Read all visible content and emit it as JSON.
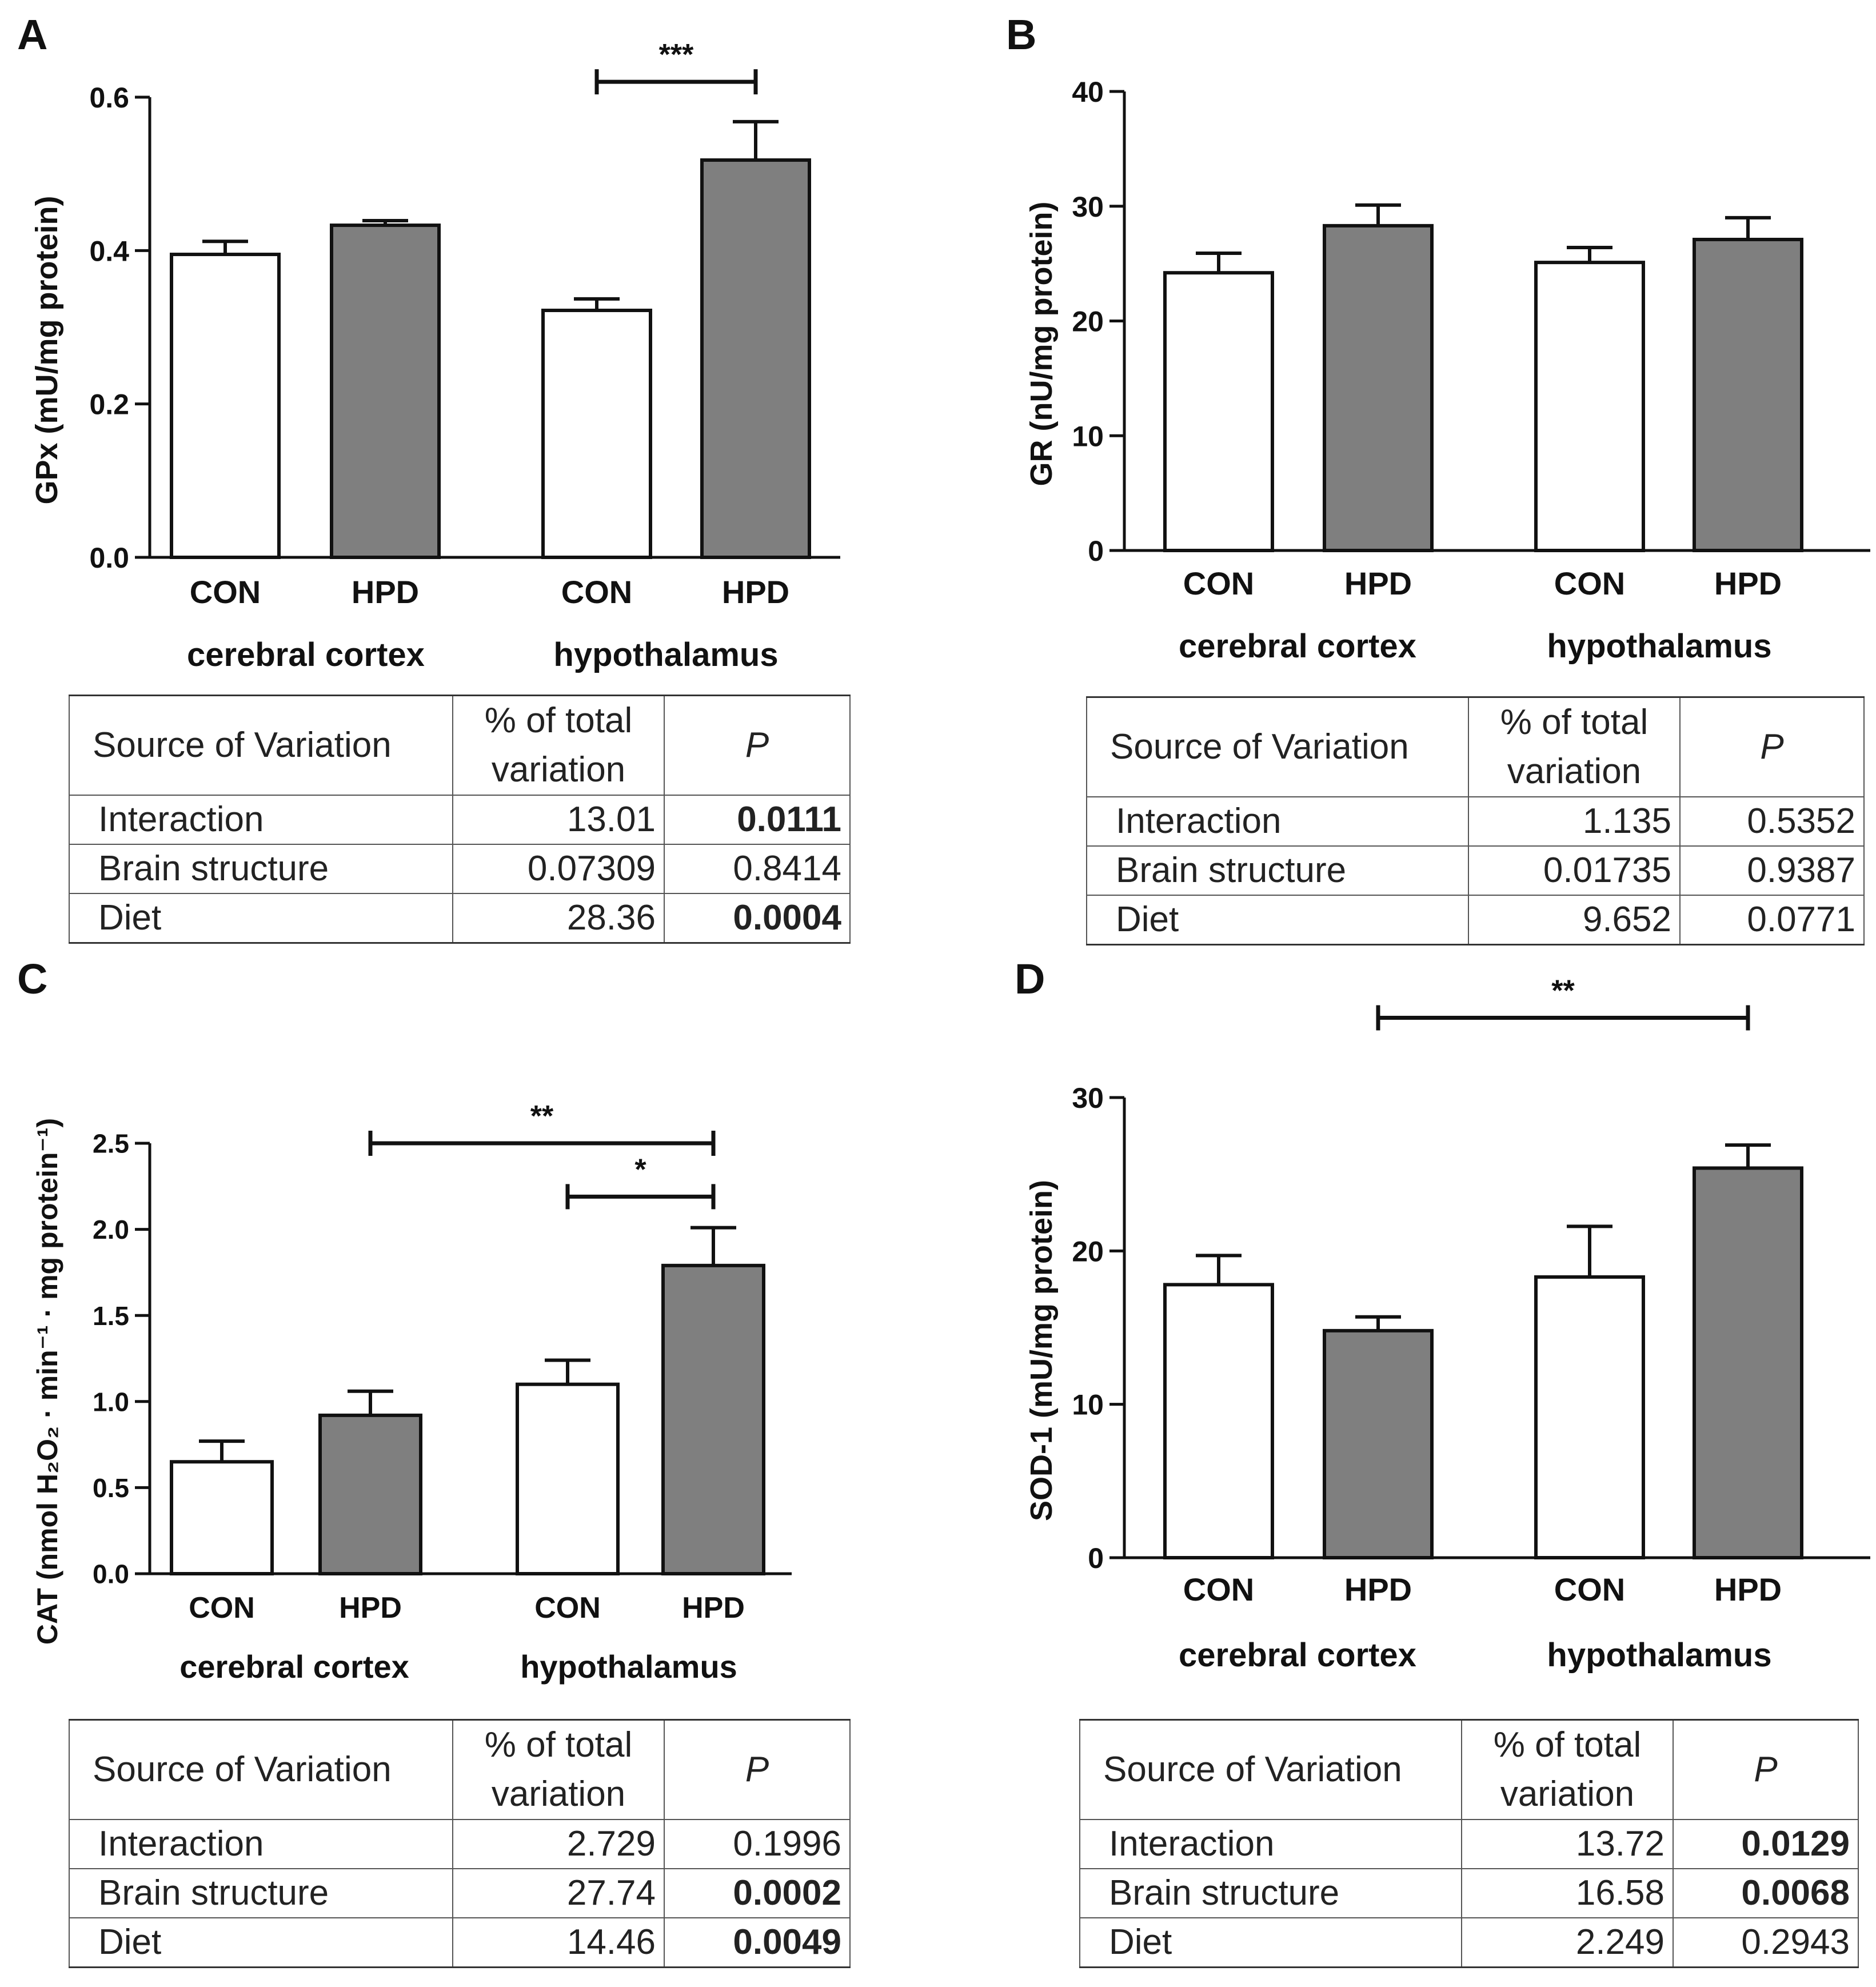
{
  "chart_data": [
    {
      "panel": "A",
      "type": "bar",
      "ylabel": "GPx (mU/mg protein)",
      "ylim": [
        0,
        0.6
      ],
      "yticks": [
        "0.0",
        "0.2",
        "0.4",
        "0.6"
      ],
      "ytick_values": [
        0,
        0.2,
        0.4,
        0.6
      ],
      "groups": [
        "cerebral cortex",
        "hypothalamus"
      ],
      "categories": [
        "CON",
        "HPD",
        "CON",
        "HPD"
      ],
      "values": [
        0.395,
        0.433,
        0.322,
        0.518
      ],
      "errors": [
        0.017,
        0.006,
        0.015,
        0.05
      ],
      "colors": [
        "#ffffff",
        "#7f7f7f",
        "#ffffff",
        "#7f7f7f"
      ],
      "significance": [
        {
          "from": 2,
          "to": 3,
          "label": "***",
          "level": 0.62
        }
      ]
    },
    {
      "panel": "B",
      "type": "bar",
      "ylabel": "GR (nU/mg protein)",
      "ylim": [
        0,
        40
      ],
      "yticks": [
        "0",
        "10",
        "20",
        "30",
        "40"
      ],
      "ytick_values": [
        0,
        10,
        20,
        30,
        40
      ],
      "groups": [
        "cerebral cortex",
        "hypothalamus"
      ],
      "categories": [
        "CON",
        "HPD",
        "CON",
        "HPD"
      ],
      "values": [
        24.2,
        28.3,
        25.1,
        27.1
      ],
      "errors": [
        1.7,
        1.8,
        1.3,
        1.9
      ],
      "colors": [
        "#ffffff",
        "#7f7f7f",
        "#ffffff",
        "#7f7f7f"
      ],
      "significance": []
    },
    {
      "panel": "C",
      "type": "bar",
      "ylabel": "CAT (nmol H₂O₂ · min⁻¹ · mg protein⁻¹)",
      "ylim": [
        0,
        2.5
      ],
      "yticks": [
        "0.0",
        "0.5",
        "1.0",
        "1.5",
        "2.0",
        "2.5"
      ],
      "ytick_values": [
        0,
        0.5,
        1.0,
        1.5,
        2.0,
        2.5
      ],
      "groups": [
        "cerebral cortex",
        "hypothalamus"
      ],
      "categories": [
        "CON",
        "HPD",
        "CON",
        "HPD"
      ],
      "values": [
        0.65,
        0.92,
        1.1,
        1.79
      ],
      "errors": [
        0.12,
        0.14,
        0.14,
        0.22
      ],
      "colors": [
        "#ffffff",
        "#7f7f7f",
        "#ffffff",
        "#7f7f7f"
      ],
      "significance": [
        {
          "from": 1,
          "to": 3,
          "label": "**",
          "level": 2.5
        },
        {
          "from": 2,
          "to": 3,
          "label": "*",
          "level": 2.19
        }
      ]
    },
    {
      "panel": "D",
      "type": "bar",
      "ylabel": "SOD-1 (mU/mg protein)",
      "ylim": [
        0,
        30
      ],
      "yticks": [
        "0",
        "10",
        "20",
        "30"
      ],
      "ytick_values": [
        0,
        10,
        20,
        30
      ],
      "groups": [
        "cerebral cortex",
        "hypothalamus"
      ],
      "categories": [
        "CON",
        "HPD",
        "CON",
        "HPD"
      ],
      "values": [
        17.8,
        14.8,
        18.3,
        25.4
      ],
      "errors": [
        1.9,
        0.9,
        3.3,
        1.5
      ],
      "colors": [
        "#ffffff",
        "#7f7f7f",
        "#ffffff",
        "#7f7f7f"
      ],
      "significance": [
        {
          "from": 1,
          "to": 3,
          "label": "**",
          "level": 35.2
        }
      ]
    }
  ],
  "tables": {
    "headers": {
      "source": "Source of Variation",
      "pct_line1": "% of total",
      "pct_line2": "variation",
      "p": "P"
    },
    "A": [
      {
        "source": "Interaction",
        "pct": "13.01",
        "p": "0.0111",
        "bold": true
      },
      {
        "source": "Brain structure",
        "pct": "0.07309",
        "p": "0.8414",
        "bold": false
      },
      {
        "source": "Diet",
        "pct": "28.36",
        "p": "0.0004",
        "bold": true
      }
    ],
    "B": [
      {
        "source": "Interaction",
        "pct": "1.135",
        "p": "0.5352",
        "bold": false
      },
      {
        "source": "Brain structure",
        "pct": "0.01735",
        "p": "0.9387",
        "bold": false
      },
      {
        "source": "Diet",
        "pct": "9.652",
        "p": "0.0771",
        "bold": false
      }
    ],
    "C": [
      {
        "source": "Interaction",
        "pct": "2.729",
        "p": "0.1996",
        "bold": false
      },
      {
        "source": "Brain structure",
        "pct": "27.74",
        "p": "0.0002",
        "bold": true
      },
      {
        "source": "Diet",
        "pct": "14.46",
        "p": "0.0049",
        "bold": true
      }
    ],
    "D": [
      {
        "source": "Interaction",
        "pct": "13.72",
        "p": "0.0129",
        "bold": true
      },
      {
        "source": "Brain structure",
        "pct": "16.58",
        "p": "0.0068",
        "bold": true
      },
      {
        "source": "Diet",
        "pct": "2.249",
        "p": "0.2943",
        "bold": false
      }
    ]
  }
}
